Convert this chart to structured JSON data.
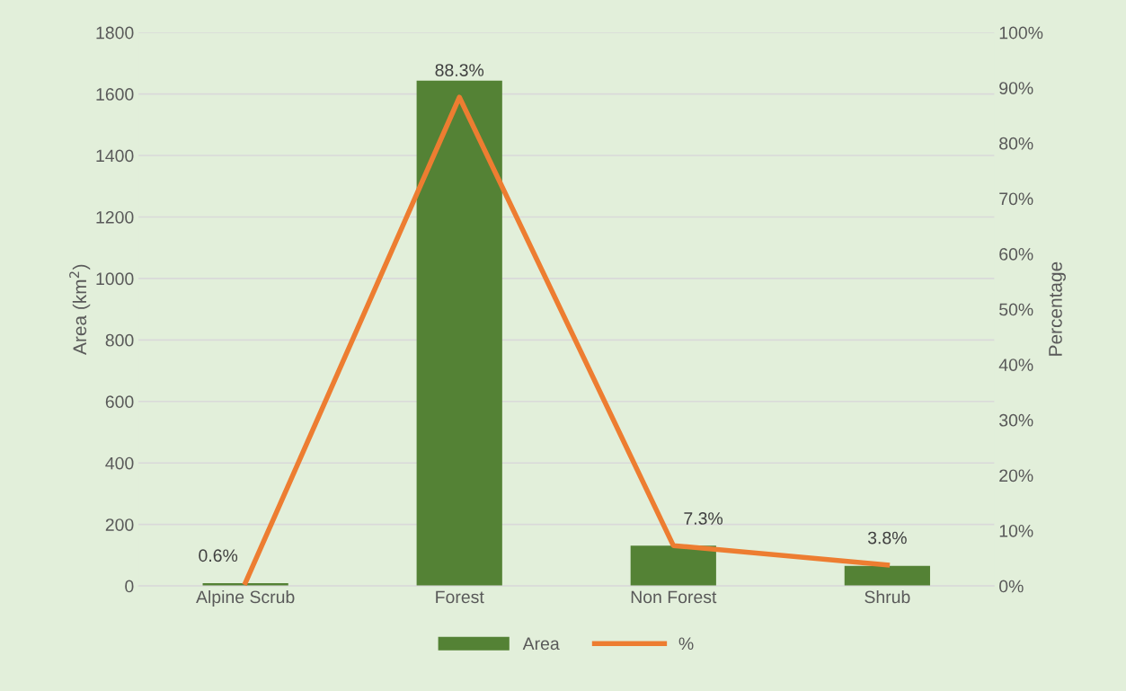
{
  "chart_data": {
    "type": "bar",
    "categories": [
      "Alpine Scrub",
      "Forest",
      "Non Forest",
      "Shrub"
    ],
    "ylabel": "Area (km$^{2}$)",
    "y2label": "Percentage",
    "series": [
      {
        "name": "Area",
        "color": "#548235",
        "values": [
          9,
          1643,
          131,
          65
        ]
      },
      {
        "name": "%",
        "type": "line",
        "axis": "y2",
        "color": "#ed7d31",
        "values": [
          0.6,
          88.3,
          7.3,
          3.8
        ],
        "value_labels": [
          "0.6%",
          "88.3%",
          "7.3%",
          "3.8%"
        ]
      }
    ],
    "ylim": [
      0,
      1800
    ],
    "yticks": [
      0,
      200,
      400,
      600,
      800,
      1000,
      1200,
      1400,
      1600,
      1800
    ],
    "y2lim": [
      0,
      100
    ],
    "y2ticks": [
      {
        "value": 0,
        "label": "0%"
      },
      {
        "value": 10,
        "label": "10%"
      },
      {
        "value": 20,
        "label": "20%"
      },
      {
        "value": 30,
        "label": "30%"
      },
      {
        "value": 40,
        "label": "40%"
      },
      {
        "value": 50,
        "label": "50%"
      },
      {
        "value": 60,
        "label": "60%"
      },
      {
        "value": 70,
        "label": "70%"
      },
      {
        "value": 80,
        "label": "80%"
      },
      {
        "value": 90,
        "label": "90%"
      },
      {
        "value": 100,
        "label": "100%"
      }
    ],
    "grid": "y",
    "legend": "bottom",
    "marker": "none",
    "line_style": "solid"
  }
}
